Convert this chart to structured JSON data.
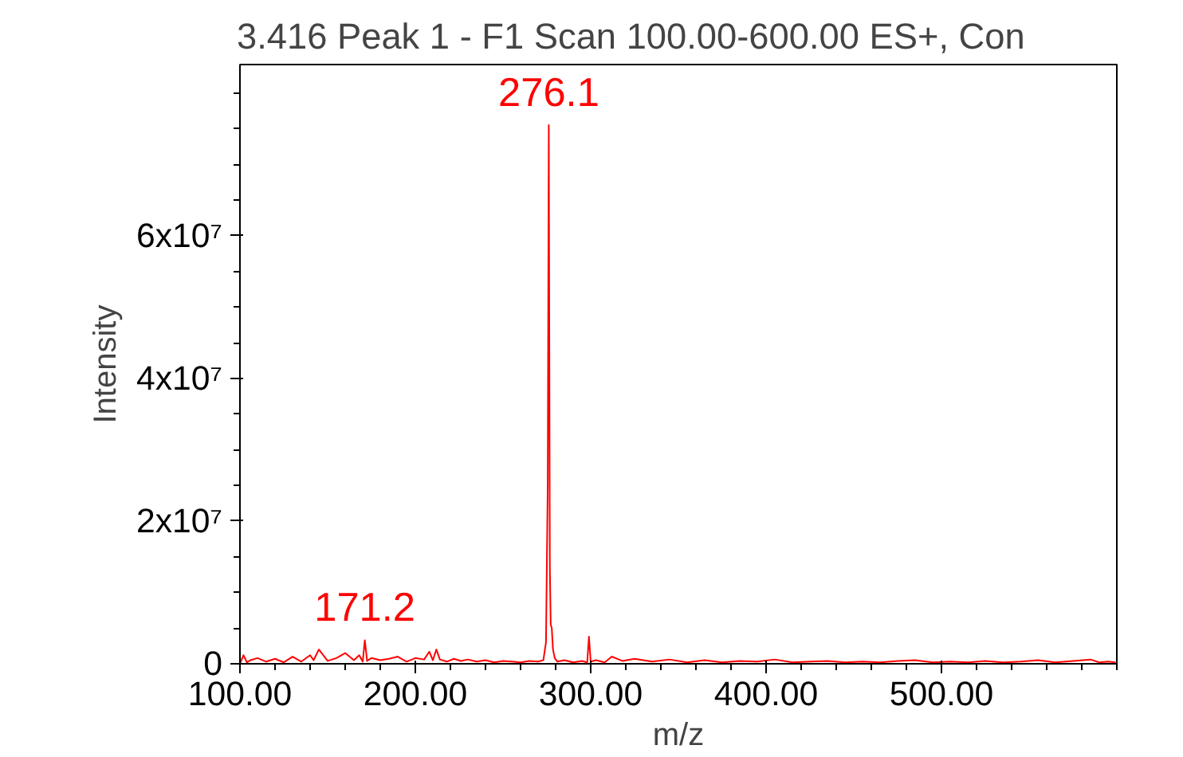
{
  "chart_data": {
    "type": "line",
    "title": "3.416 Peak 1 - F1 Scan 100.00-600.00 ES+, Con",
    "xlabel": "m/z",
    "ylabel": "Intensity",
    "x": [
      100,
      102,
      104,
      106,
      110,
      115,
      120,
      125,
      130,
      135,
      140,
      142,
      145,
      150,
      155,
      160,
      165,
      168,
      170,
      171.2,
      172.5,
      175,
      180,
      185,
      190,
      195,
      200,
      205,
      208,
      210,
      212,
      214,
      218,
      222,
      226,
      230,
      235,
      240,
      245,
      250,
      255,
      260,
      265,
      270,
      273,
      274.5,
      275.5,
      276.1,
      276.7,
      277.2,
      277.8,
      278.5,
      279.5,
      281,
      285,
      290,
      295,
      298,
      299,
      300,
      303,
      308,
      312,
      318,
      325,
      335,
      345,
      355,
      365,
      375,
      385,
      395,
      405,
      415,
      425,
      435,
      445,
      455,
      465,
      475,
      485,
      495,
      505,
      515,
      525,
      535,
      545,
      555,
      565,
      575,
      585,
      590,
      595,
      599
    ],
    "series": [
      {
        "color": "#ff0000",
        "values": [
          0,
          1200000,
          200000,
          500000,
          800000,
          300000,
          700000,
          200000,
          1000000,
          300000,
          1200000,
          500000,
          2000000,
          400000,
          800000,
          1500000,
          500000,
          1200000,
          300000,
          3300000,
          400000,
          800000,
          500000,
          700000,
          1000000,
          300000,
          800000,
          600000,
          1700000,
          500000,
          2000000,
          600000,
          300000,
          700000,
          400000,
          600000,
          300000,
          500000,
          200000,
          400000,
          300000,
          200000,
          400000,
          300000,
          500000,
          3000000,
          25000000,
          75500000,
          13600000,
          5500000,
          5000000,
          2000000,
          800000,
          300000,
          500000,
          200000,
          400000,
          200000,
          3800000,
          300000,
          500000,
          200000,
          1000000,
          400000,
          700000,
          300000,
          600000,
          200000,
          500000,
          200000,
          400000,
          300000,
          600000,
          200000,
          300000,
          400000,
          200000,
          300000,
          200000,
          400000,
          500000,
          200000,
          300000,
          200000,
          400000,
          200000,
          300000,
          500000,
          200000,
          400000,
          600000,
          200000,
          300000,
          200000
        ]
      }
    ],
    "xlim": [
      100,
      600
    ],
    "xticks": [
      {
        "value": 100,
        "label": "100.00"
      },
      {
        "value": 200,
        "label": "200.00"
      },
      {
        "value": 300,
        "label": "300.00"
      },
      {
        "value": 400,
        "label": "400.00"
      },
      {
        "value": 500,
        "label": "500.00"
      }
    ],
    "ylim": [
      0,
      84000000
    ],
    "yticks": [
      0,
      {
        "value": 20000000,
        "label": "2x10⁷"
      },
      {
        "value": 40000000,
        "label": "4x10⁷"
      },
      {
        "value": 60000000,
        "label": "6x10⁷"
      }
    ],
    "annotations": [
      {
        "text": "276.1",
        "x": 276.1,
        "y": 75500000
      },
      {
        "text": "171.2",
        "x": 171.2,
        "y": 3300000
      }
    ],
    "grid": false
  }
}
